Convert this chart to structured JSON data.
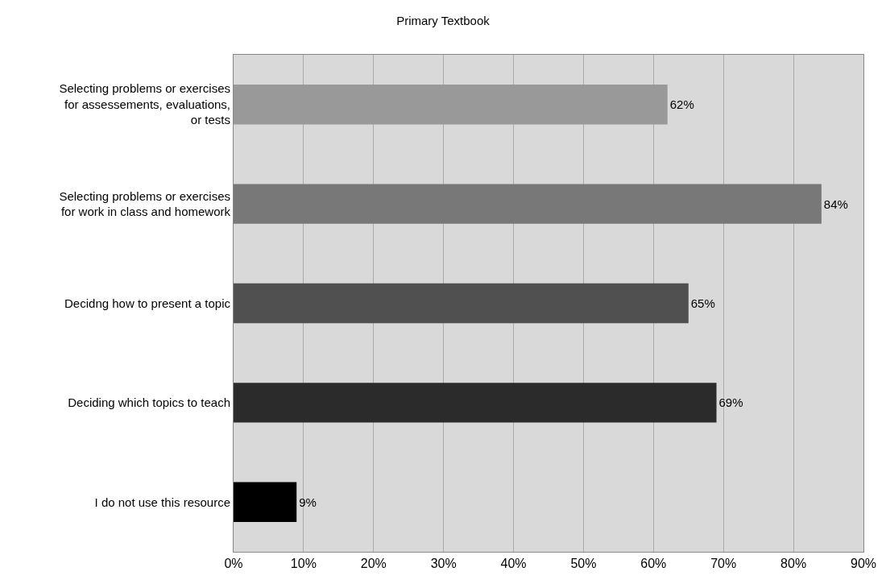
{
  "chart_data": {
    "type": "bar",
    "orientation": "horizontal",
    "title": "Primary Textbook",
    "categories": [
      "Selecting problems or exercises\nfor assessements, evaluations,\nor tests",
      "Selecting problems or exercises\nfor work in class and homework",
      "Decidng how to present a topic",
      "Deciding which topics to teach",
      "I do not use this resource"
    ],
    "values": [
      62,
      84,
      65,
      69,
      9
    ],
    "value_labels": [
      "62%",
      "84%",
      "65%",
      "69%",
      "9%"
    ],
    "colors": [
      "#999999",
      "#787878",
      "#505050",
      "#2b2b2b",
      "#000000"
    ],
    "xlim": [
      0,
      90
    ],
    "xticks": [
      {
        "value": 0,
        "label": "0%"
      },
      {
        "value": 10,
        "label": "10%"
      },
      {
        "value": 20,
        "label": "20%"
      },
      {
        "value": 30,
        "label": "30%"
      },
      {
        "value": 40,
        "label": "40%"
      },
      {
        "value": 50,
        "label": "50%"
      },
      {
        "value": 60,
        "label": "60%"
      },
      {
        "value": 70,
        "label": "70%"
      },
      {
        "value": 80,
        "label": "80%"
      },
      {
        "value": 90,
        "label": "90%"
      }
    ],
    "grid": "x",
    "legend": false
  }
}
